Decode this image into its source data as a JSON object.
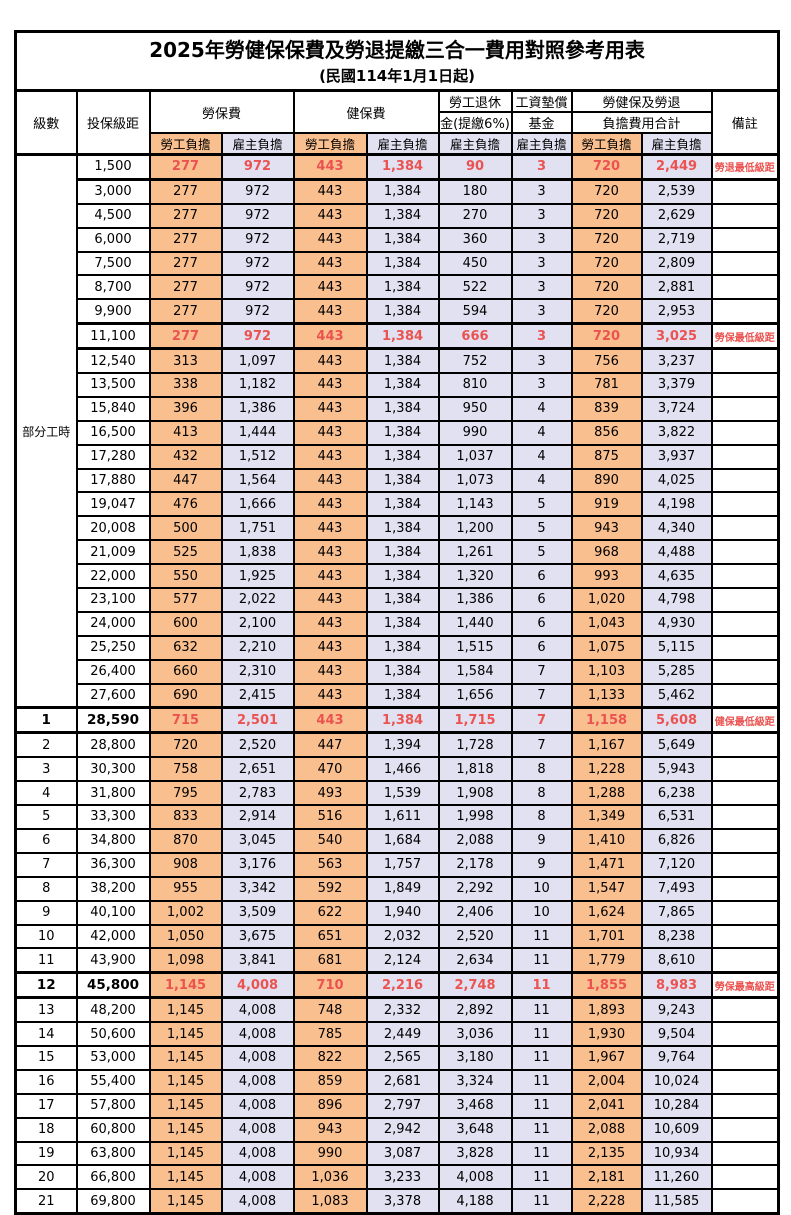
{
  "title": "2025年勞健保保費及勞退提繳三合一費用對照參考用表",
  "subtitle": "(民國114年1月1日起)",
  "colors": {
    "employee_bg": "#FABF8F",
    "employer_bg": "#E1E1F2",
    "highlight_text": "#EB5350",
    "border": "#000000"
  },
  "header": {
    "level": "級數",
    "bracket": "投保級距",
    "labor_insurance": "勞保費",
    "health_insurance": "健保費",
    "pension_line1": "勞工退休",
    "pension_line2": "金(提繳6%)",
    "wage_fund_line1": "工資墊償",
    "wage_fund_line2": "基金",
    "total_line1": "勞健保及勞退",
    "total_line2": "負擔費用合計",
    "remark": "備註",
    "employee_share": "勞工負擔",
    "employer_share": "雇主負擔"
  },
  "part_time_label": "部分工時",
  "rows": [
    {
      "level": "",
      "bracket": "1,500",
      "v": [
        "277",
        "972",
        "443",
        "1,384",
        "90",
        "3",
        "720",
        "2,449"
      ],
      "remark": "勞退最低級距",
      "hl": true,
      "bold": false
    },
    {
      "level": "",
      "bracket": "3,000",
      "v": [
        "277",
        "972",
        "443",
        "1,384",
        "180",
        "3",
        "720",
        "2,539"
      ],
      "remark": "",
      "hl": false,
      "bold": false
    },
    {
      "level": "",
      "bracket": "4,500",
      "v": [
        "277",
        "972",
        "443",
        "1,384",
        "270",
        "3",
        "720",
        "2,629"
      ],
      "remark": "",
      "hl": false,
      "bold": false
    },
    {
      "level": "",
      "bracket": "6,000",
      "v": [
        "277",
        "972",
        "443",
        "1,384",
        "360",
        "3",
        "720",
        "2,719"
      ],
      "remark": "",
      "hl": false,
      "bold": false
    },
    {
      "level": "",
      "bracket": "7,500",
      "v": [
        "277",
        "972",
        "443",
        "1,384",
        "450",
        "3",
        "720",
        "2,809"
      ],
      "remark": "",
      "hl": false,
      "bold": false
    },
    {
      "level": "",
      "bracket": "8,700",
      "v": [
        "277",
        "972",
        "443",
        "1,384",
        "522",
        "3",
        "720",
        "2,881"
      ],
      "remark": "",
      "hl": false,
      "bold": false
    },
    {
      "level": "",
      "bracket": "9,900",
      "v": [
        "277",
        "972",
        "443",
        "1,384",
        "594",
        "3",
        "720",
        "2,953"
      ],
      "remark": "",
      "hl": false,
      "bold": false
    },
    {
      "level": "",
      "bracket": "11,100",
      "v": [
        "277",
        "972",
        "443",
        "1,384",
        "666",
        "3",
        "720",
        "3,025"
      ],
      "remark": "勞保最低級距",
      "hl": true,
      "bold": false
    },
    {
      "level": "",
      "bracket": "12,540",
      "v": [
        "313",
        "1,097",
        "443",
        "1,384",
        "752",
        "3",
        "756",
        "3,237"
      ],
      "remark": "",
      "hl": false,
      "bold": false
    },
    {
      "level": "",
      "bracket": "13,500",
      "v": [
        "338",
        "1,182",
        "443",
        "1,384",
        "810",
        "3",
        "781",
        "3,379"
      ],
      "remark": "",
      "hl": false,
      "bold": false
    },
    {
      "level": "",
      "bracket": "15,840",
      "v": [
        "396",
        "1,386",
        "443",
        "1,384",
        "950",
        "4",
        "839",
        "3,724"
      ],
      "remark": "",
      "hl": false,
      "bold": false
    },
    {
      "level": "",
      "bracket": "16,500",
      "v": [
        "413",
        "1,444",
        "443",
        "1,384",
        "990",
        "4",
        "856",
        "3,822"
      ],
      "remark": "",
      "hl": false,
      "bold": false
    },
    {
      "level": "",
      "bracket": "17,280",
      "v": [
        "432",
        "1,512",
        "443",
        "1,384",
        "1,037",
        "4",
        "875",
        "3,937"
      ],
      "remark": "",
      "hl": false,
      "bold": false
    },
    {
      "level": "",
      "bracket": "17,880",
      "v": [
        "447",
        "1,564",
        "443",
        "1,384",
        "1,073",
        "4",
        "890",
        "4,025"
      ],
      "remark": "",
      "hl": false,
      "bold": false
    },
    {
      "level": "",
      "bracket": "19,047",
      "v": [
        "476",
        "1,666",
        "443",
        "1,384",
        "1,143",
        "5",
        "919",
        "4,198"
      ],
      "remark": "",
      "hl": false,
      "bold": false
    },
    {
      "level": "",
      "bracket": "20,008",
      "v": [
        "500",
        "1,751",
        "443",
        "1,384",
        "1,200",
        "5",
        "943",
        "4,340"
      ],
      "remark": "",
      "hl": false,
      "bold": false
    },
    {
      "level": "",
      "bracket": "21,009",
      "v": [
        "525",
        "1,838",
        "443",
        "1,384",
        "1,261",
        "5",
        "968",
        "4,488"
      ],
      "remark": "",
      "hl": false,
      "bold": false
    },
    {
      "level": "",
      "bracket": "22,000",
      "v": [
        "550",
        "1,925",
        "443",
        "1,384",
        "1,320",
        "6",
        "993",
        "4,635"
      ],
      "remark": "",
      "hl": false,
      "bold": false
    },
    {
      "level": "",
      "bracket": "23,100",
      "v": [
        "577",
        "2,022",
        "443",
        "1,384",
        "1,386",
        "6",
        "1,020",
        "4,798"
      ],
      "remark": "",
      "hl": false,
      "bold": false
    },
    {
      "level": "",
      "bracket": "24,000",
      "v": [
        "600",
        "2,100",
        "443",
        "1,384",
        "1,440",
        "6",
        "1,043",
        "4,930"
      ],
      "remark": "",
      "hl": false,
      "bold": false
    },
    {
      "level": "",
      "bracket": "25,250",
      "v": [
        "632",
        "2,210",
        "443",
        "1,384",
        "1,515",
        "6",
        "1,075",
        "5,115"
      ],
      "remark": "",
      "hl": false,
      "bold": false
    },
    {
      "level": "",
      "bracket": "26,400",
      "v": [
        "660",
        "2,310",
        "443",
        "1,384",
        "1,584",
        "7",
        "1,103",
        "5,285"
      ],
      "remark": "",
      "hl": false,
      "bold": false
    },
    {
      "level": "",
      "bracket": "27,600",
      "v": [
        "690",
        "2,415",
        "443",
        "1,384",
        "1,656",
        "7",
        "1,133",
        "5,462"
      ],
      "remark": "",
      "hl": false,
      "bold": false
    },
    {
      "level": "1",
      "bracket": "28,590",
      "v": [
        "715",
        "2,501",
        "443",
        "1,384",
        "1,715",
        "7",
        "1,158",
        "5,608"
      ],
      "remark": "健保最低級距",
      "hl": true,
      "bold": true
    },
    {
      "level": "2",
      "bracket": "28,800",
      "v": [
        "720",
        "2,520",
        "447",
        "1,394",
        "1,728",
        "7",
        "1,167",
        "5,649"
      ],
      "remark": "",
      "hl": false,
      "bold": false
    },
    {
      "level": "3",
      "bracket": "30,300",
      "v": [
        "758",
        "2,651",
        "470",
        "1,466",
        "1,818",
        "8",
        "1,228",
        "5,943"
      ],
      "remark": "",
      "hl": false,
      "bold": false
    },
    {
      "level": "4",
      "bracket": "31,800",
      "v": [
        "795",
        "2,783",
        "493",
        "1,539",
        "1,908",
        "8",
        "1,288",
        "6,238"
      ],
      "remark": "",
      "hl": false,
      "bold": false
    },
    {
      "level": "5",
      "bracket": "33,300",
      "v": [
        "833",
        "2,914",
        "516",
        "1,611",
        "1,998",
        "8",
        "1,349",
        "6,531"
      ],
      "remark": "",
      "hl": false,
      "bold": false
    },
    {
      "level": "6",
      "bracket": "34,800",
      "v": [
        "870",
        "3,045",
        "540",
        "1,684",
        "2,088",
        "9",
        "1,410",
        "6,826"
      ],
      "remark": "",
      "hl": false,
      "bold": false
    },
    {
      "level": "7",
      "bracket": "36,300",
      "v": [
        "908",
        "3,176",
        "563",
        "1,757",
        "2,178",
        "9",
        "1,471",
        "7,120"
      ],
      "remark": "",
      "hl": false,
      "bold": false
    },
    {
      "level": "8",
      "bracket": "38,200",
      "v": [
        "955",
        "3,342",
        "592",
        "1,849",
        "2,292",
        "10",
        "1,547",
        "7,493"
      ],
      "remark": "",
      "hl": false,
      "bold": false
    },
    {
      "level": "9",
      "bracket": "40,100",
      "v": [
        "1,002",
        "3,509",
        "622",
        "1,940",
        "2,406",
        "10",
        "1,624",
        "7,865"
      ],
      "remark": "",
      "hl": false,
      "bold": false
    },
    {
      "level": "10",
      "bracket": "42,000",
      "v": [
        "1,050",
        "3,675",
        "651",
        "2,032",
        "2,520",
        "11",
        "1,701",
        "8,238"
      ],
      "remark": "",
      "hl": false,
      "bold": false
    },
    {
      "level": "11",
      "bracket": "43,900",
      "v": [
        "1,098",
        "3,841",
        "681",
        "2,124",
        "2,634",
        "11",
        "1,779",
        "8,610"
      ],
      "remark": "",
      "hl": false,
      "bold": false
    },
    {
      "level": "12",
      "bracket": "45,800",
      "v": [
        "1,145",
        "4,008",
        "710",
        "2,216",
        "2,748",
        "11",
        "1,855",
        "8,983"
      ],
      "remark": "勞保最高級距",
      "hl": true,
      "bold": true
    },
    {
      "level": "13",
      "bracket": "48,200",
      "v": [
        "1,145",
        "4,008",
        "748",
        "2,332",
        "2,892",
        "11",
        "1,893",
        "9,243"
      ],
      "remark": "",
      "hl": false,
      "bold": false
    },
    {
      "level": "14",
      "bracket": "50,600",
      "v": [
        "1,145",
        "4,008",
        "785",
        "2,449",
        "3,036",
        "11",
        "1,930",
        "9,504"
      ],
      "remark": "",
      "hl": false,
      "bold": false
    },
    {
      "level": "15",
      "bracket": "53,000",
      "v": [
        "1,145",
        "4,008",
        "822",
        "2,565",
        "3,180",
        "11",
        "1,967",
        "9,764"
      ],
      "remark": "",
      "hl": false,
      "bold": false
    },
    {
      "level": "16",
      "bracket": "55,400",
      "v": [
        "1,145",
        "4,008",
        "859",
        "2,681",
        "3,324",
        "11",
        "2,004",
        "10,024"
      ],
      "remark": "",
      "hl": false,
      "bold": false
    },
    {
      "level": "17",
      "bracket": "57,800",
      "v": [
        "1,145",
        "4,008",
        "896",
        "2,797",
        "3,468",
        "11",
        "2,041",
        "10,284"
      ],
      "remark": "",
      "hl": false,
      "bold": false
    },
    {
      "level": "18",
      "bracket": "60,800",
      "v": [
        "1,145",
        "4,008",
        "943",
        "2,942",
        "3,648",
        "11",
        "2,088",
        "10,609"
      ],
      "remark": "",
      "hl": false,
      "bold": false
    },
    {
      "level": "19",
      "bracket": "63,800",
      "v": [
        "1,145",
        "4,008",
        "990",
        "3,087",
        "3,828",
        "11",
        "2,135",
        "10,934"
      ],
      "remark": "",
      "hl": false,
      "bold": false
    },
    {
      "level": "20",
      "bracket": "66,800",
      "v": [
        "1,145",
        "4,008",
        "1,036",
        "3,233",
        "4,008",
        "11",
        "2,181",
        "11,260"
      ],
      "remark": "",
      "hl": false,
      "bold": false
    },
    {
      "level": "21",
      "bracket": "69,800",
      "v": [
        "1,145",
        "4,008",
        "1,083",
        "3,378",
        "4,188",
        "11",
        "2,228",
        "11,585"
      ],
      "remark": "",
      "hl": false,
      "bold": false
    }
  ]
}
